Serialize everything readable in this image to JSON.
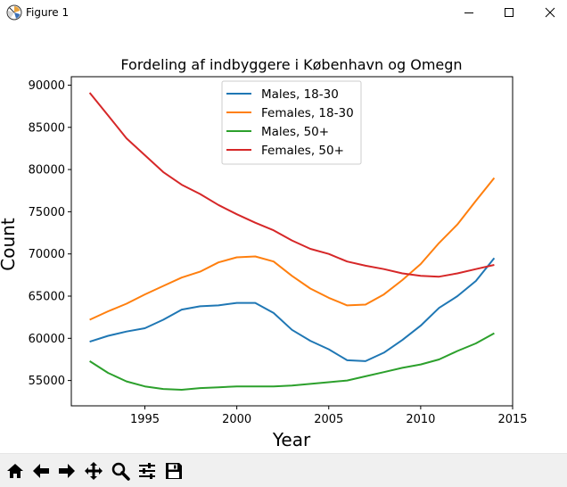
{
  "window": {
    "title": "Figure 1",
    "icon": "matplotlib-figure-icon",
    "controls": [
      "minimize-icon",
      "maximize-icon",
      "close-icon"
    ]
  },
  "toolbar": {
    "buttons": [
      "home-icon",
      "back-arrow-icon",
      "forward-arrow-icon",
      "pan-icon",
      "zoom-icon",
      "configure-subplots-icon",
      "save-icon"
    ]
  },
  "chart_data": {
    "type": "line",
    "title": "Fordeling af indbyggere i København og Omegn",
    "xlabel": "Year",
    "ylabel": "Count",
    "xlim": [
      1991,
      2015
    ],
    "ylim": [
      52000,
      91000
    ],
    "xticks": [
      "1995",
      "2000",
      "2005",
      "2010",
      "2015"
    ],
    "yticks": [
      "55000",
      "60000",
      "65000",
      "70000",
      "75000",
      "80000",
      "85000",
      "90000"
    ],
    "grid": false,
    "legend_position": "top-center",
    "x": [
      1992,
      1993,
      1994,
      1995,
      1996,
      1997,
      1998,
      1999,
      2000,
      2001,
      2002,
      2003,
      2004,
      2005,
      2006,
      2007,
      2008,
      2009,
      2010,
      2011,
      2012,
      2013,
      2014
    ],
    "series": [
      {
        "name": "Males, 18-30",
        "color": "#1f77b4",
        "values": [
          59600,
          60300,
          60800,
          61200,
          62200,
          63400,
          63800,
          63900,
          64200,
          64200,
          63000,
          61000,
          59700,
          58700,
          57400,
          57300,
          58300,
          59800,
          61500,
          63600,
          65000,
          66800,
          69500
        ]
      },
      {
        "name": "Females, 18-30",
        "color": "#ff7f0e",
        "values": [
          62200,
          63200,
          64100,
          65200,
          66200,
          67200,
          67900,
          69000,
          69600,
          69700,
          69100,
          67400,
          65900,
          64800,
          63900,
          64000,
          65200,
          66900,
          68800,
          71300,
          73500,
          76300,
          79000
        ]
      },
      {
        "name": "Males, 50+",
        "color": "#2ca02c",
        "values": [
          57300,
          55900,
          54900,
          54300,
          54000,
          53900,
          54100,
          54200,
          54300,
          54300,
          54300,
          54400,
          54600,
          54800,
          55000,
          55500,
          56000,
          56500,
          56900,
          57500,
          58500,
          59400,
          60600
        ]
      },
      {
        "name": "Females, 50+",
        "color": "#d62728",
        "values": [
          89100,
          86400,
          83700,
          81700,
          79700,
          78200,
          77100,
          75800,
          74700,
          73700,
          72800,
          71600,
          70600,
          70000,
          69100,
          68600,
          68200,
          67700,
          67400,
          67300,
          67700,
          68200,
          68700
        ]
      }
    ]
  }
}
